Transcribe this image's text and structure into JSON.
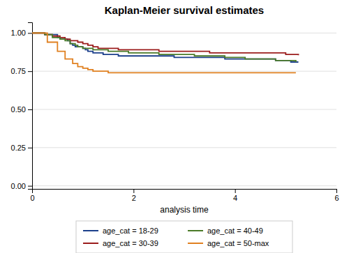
{
  "chart_data": {
    "type": "step",
    "title": "Kaplan-Meier survival estimates",
    "xlabel": "analysis time",
    "xlim": [
      0,
      6
    ],
    "ylim": [
      -0.02,
      1.07
    ],
    "xticks": [
      0,
      2,
      4,
      6
    ],
    "yticks": [
      {
        "value": 0.0,
        "label": "0.00"
      },
      {
        "value": 0.25,
        "label": "0.25"
      },
      {
        "value": 0.5,
        "label": "0.50"
      },
      {
        "value": 0.75,
        "label": "0.75"
      },
      {
        "value": 1.0,
        "label": "1.00"
      }
    ],
    "grid": true,
    "legend": "bottom",
    "series": [
      {
        "name": "age_cat = 18-29",
        "color": "#1b3f8b",
        "x": [
          0.0,
          0.25,
          0.5,
          0.55,
          0.7,
          0.75,
          0.8,
          0.85,
          1.0,
          1.05,
          1.1,
          1.2,
          1.3,
          1.4,
          1.5,
          1.6,
          1.7,
          1.8,
          1.9,
          2.0,
          2.1,
          2.2,
          2.5,
          2.8,
          3.0,
          3.2,
          3.5,
          3.8,
          4.0,
          4.2,
          4.5,
          4.8,
          5.0,
          5.1,
          5.25
        ],
        "values": [
          1.0,
          0.99,
          0.97,
          0.96,
          0.95,
          0.93,
          0.92,
          0.91,
          0.9,
          0.89,
          0.88,
          0.87,
          0.87,
          0.86,
          0.86,
          0.86,
          0.85,
          0.85,
          0.85,
          0.85,
          0.85,
          0.85,
          0.85,
          0.84,
          0.84,
          0.84,
          0.84,
          0.83,
          0.83,
          0.83,
          0.83,
          0.82,
          0.82,
          0.81,
          0.81
        ]
      },
      {
        "name": "age_cat = 30-39",
        "color": "#9b1c1c",
        "x": [
          0.0,
          0.25,
          0.4,
          0.55,
          0.65,
          0.75,
          0.9,
          1.0,
          1.1,
          1.2,
          1.3,
          1.5,
          1.7,
          2.0,
          2.5,
          3.0,
          3.5,
          4.0,
          4.5,
          5.0,
          5.25
        ],
        "values": [
          1.0,
          0.99,
          0.98,
          0.97,
          0.96,
          0.95,
          0.94,
          0.93,
          0.92,
          0.91,
          0.9,
          0.9,
          0.89,
          0.89,
          0.88,
          0.88,
          0.87,
          0.87,
          0.87,
          0.86,
          0.855
        ]
      },
      {
        "name": "age_cat = 40-49",
        "color": "#4a7a28",
        "x": [
          0.0,
          0.25,
          0.4,
          0.55,
          0.65,
          0.75,
          0.85,
          0.9,
          1.0,
          1.1,
          1.2,
          1.3,
          1.5,
          1.7,
          1.9,
          2.0,
          2.2,
          2.5,
          2.8,
          3.0,
          3.2,
          3.5,
          3.8,
          4.0,
          4.2,
          4.5,
          4.8,
          5.0,
          5.2
        ],
        "values": [
          1.0,
          0.99,
          0.97,
          0.96,
          0.95,
          0.93,
          0.92,
          0.91,
          0.9,
          0.9,
          0.89,
          0.89,
          0.88,
          0.88,
          0.87,
          0.87,
          0.87,
          0.86,
          0.86,
          0.86,
          0.85,
          0.85,
          0.84,
          0.84,
          0.83,
          0.83,
          0.82,
          0.82,
          0.81
        ]
      },
      {
        "name": "age_cat = 50-max",
        "color": "#e08020",
        "x": [
          0.0,
          0.3,
          0.5,
          0.65,
          0.8,
          0.9,
          1.0,
          1.1,
          1.2,
          1.5,
          5.2
        ],
        "values": [
          1.0,
          0.94,
          0.88,
          0.83,
          0.8,
          0.78,
          0.77,
          0.76,
          0.75,
          0.74,
          0.74
        ]
      }
    ]
  }
}
